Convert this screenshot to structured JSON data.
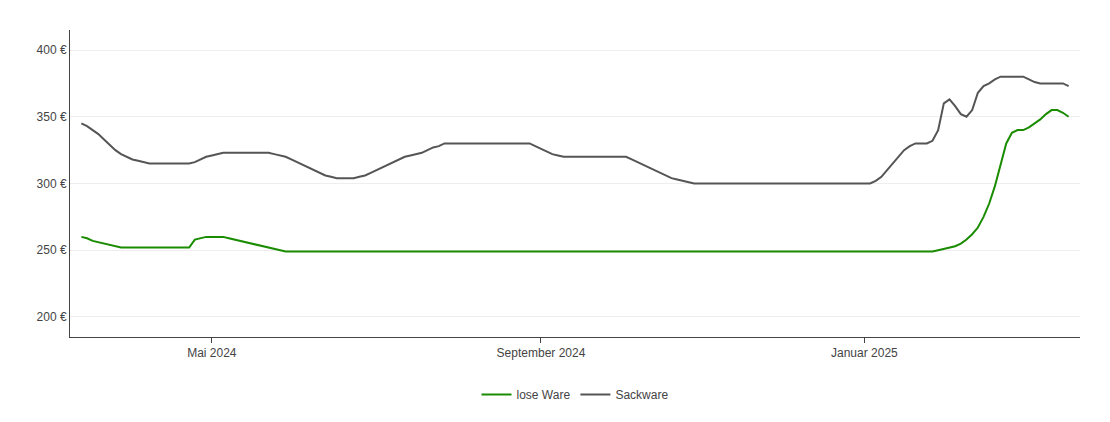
{
  "chart_data": {
    "type": "line",
    "categories": [
      null,
      null,
      null,
      null,
      null,
      null,
      null,
      null,
      null,
      null,
      null,
      null,
      null,
      null,
      null,
      null,
      null,
      null,
      null,
      null,
      null,
      null,
      null,
      "Mai 2024",
      null,
      null,
      null,
      null,
      null,
      null,
      null,
      null,
      null,
      null,
      null,
      null,
      null,
      null,
      null,
      null,
      null,
      null,
      null,
      null,
      null,
      null,
      null,
      null,
      null,
      null,
      null,
      null,
      null,
      null,
      null,
      null,
      null,
      null,
      null,
      null,
      null,
      null,
      null,
      null,
      null,
      null,
      null,
      null,
      null,
      null,
      null,
      null,
      null,
      null,
      null,
      null,
      null,
      null,
      null,
      null,
      null,
      "September 2024",
      null,
      null,
      null,
      null,
      null,
      null,
      null,
      null,
      null,
      null,
      null,
      null,
      null,
      null,
      null,
      null,
      null,
      null,
      null,
      null,
      null,
      null,
      null,
      null,
      null,
      null,
      null,
      null,
      null,
      null,
      null,
      null,
      null,
      null,
      null,
      null,
      null,
      null,
      null,
      null,
      null,
      null,
      null,
      null,
      null,
      null,
      null,
      null,
      null,
      null,
      null,
      null,
      null,
      null,
      null,
      null,
      "Januar 2025",
      null,
      null,
      null,
      null,
      null,
      null,
      null,
      null,
      null,
      null,
      null,
      null,
      null,
      null,
      null,
      null,
      null,
      null,
      null,
      null,
      null,
      null,
      null,
      null,
      null,
      null,
      null,
      null,
      null,
      null,
      null,
      null,
      null,
      null,
      null,
      null
    ],
    "series": [
      {
        "name": "lose Ware",
        "color": "#1a8c00",
        "values": [
          260,
          259,
          257,
          256,
          255,
          254,
          253,
          252,
          252,
          252,
          252,
          252,
          252,
          252,
          252,
          252,
          252,
          252,
          252,
          252,
          258,
          259,
          260,
          260,
          260,
          260,
          259,
          258,
          257,
          256,
          255,
          254,
          253,
          252,
          251,
          250,
          249,
          249,
          249,
          249,
          249,
          249,
          249,
          249,
          249,
          249,
          249,
          249,
          249,
          249,
          249,
          249,
          249,
          249,
          249,
          249,
          249,
          249,
          249,
          249,
          249,
          249,
          249,
          249,
          249,
          249,
          249,
          249,
          249,
          249,
          249,
          249,
          249,
          249,
          249,
          249,
          249,
          249,
          249,
          249,
          249,
          249,
          249,
          249,
          249,
          249,
          249,
          249,
          249,
          249,
          249,
          249,
          249,
          249,
          249,
          249,
          249,
          249,
          249,
          249,
          249,
          249,
          249,
          249,
          249,
          249,
          249,
          249,
          249,
          249,
          249,
          249,
          249,
          249,
          249,
          249,
          249,
          249,
          249,
          249,
          249,
          249,
          249,
          249,
          249,
          249,
          249,
          249,
          249,
          249,
          249,
          249,
          249,
          249,
          249,
          249,
          249,
          249,
          249,
          249,
          249,
          249,
          249,
          249,
          249,
          249,
          249,
          249,
          249,
          249,
          249,
          250,
          251,
          252,
          253,
          255,
          258,
          262,
          267,
          275,
          285,
          298,
          315,
          330,
          338,
          340,
          340,
          342,
          345,
          348,
          352,
          355,
          355,
          353,
          350
        ]
      },
      {
        "name": "Sackware",
        "color": "#555555",
        "values": [
          345,
          343,
          340,
          337,
          333,
          329,
          325,
          322,
          320,
          318,
          317,
          316,
          315,
          315,
          315,
          315,
          315,
          315,
          315,
          315,
          316,
          318,
          320,
          321,
          322,
          323,
          323,
          323,
          323,
          323,
          323,
          323,
          323,
          323,
          322,
          321,
          320,
          318,
          316,
          314,
          312,
          310,
          308,
          306,
          305,
          304,
          304,
          304,
          304,
          305,
          306,
          308,
          310,
          312,
          314,
          316,
          318,
          320,
          321,
          322,
          323,
          325,
          327,
          328,
          330,
          330,
          330,
          330,
          330,
          330,
          330,
          330,
          330,
          330,
          330,
          330,
          330,
          330,
          330,
          330,
          328,
          326,
          324,
          322,
          321,
          320,
          320,
          320,
          320,
          320,
          320,
          320,
          320,
          320,
          320,
          320,
          320,
          318,
          316,
          314,
          312,
          310,
          308,
          306,
          304,
          303,
          302,
          301,
          300,
          300,
          300,
          300,
          300,
          300,
          300,
          300,
          300,
          300,
          300,
          300,
          300,
          300,
          300,
          300,
          300,
          300,
          300,
          300,
          300,
          300,
          300,
          300,
          300,
          300,
          300,
          300,
          300,
          300,
          300,
          300,
          302,
          305,
          310,
          315,
          320,
          325,
          328,
          330,
          330,
          330,
          332,
          340,
          360,
          363,
          358,
          352,
          350,
          355,
          368,
          373,
          375,
          378,
          380,
          380,
          380,
          380,
          380,
          378,
          376,
          375,
          375,
          375,
          375,
          375,
          373
        ]
      }
    ],
    "ylim": [
      185,
      415
    ],
    "yticks": [
      {
        "value": 200,
        "label": "200 €"
      },
      {
        "value": 250,
        "label": "250 €"
      },
      {
        "value": 300,
        "label": "300 €"
      },
      {
        "value": 350,
        "label": "350 €"
      },
      {
        "value": 400,
        "label": "400 €"
      }
    ],
    "grid": true,
    "legend": "bottom"
  }
}
